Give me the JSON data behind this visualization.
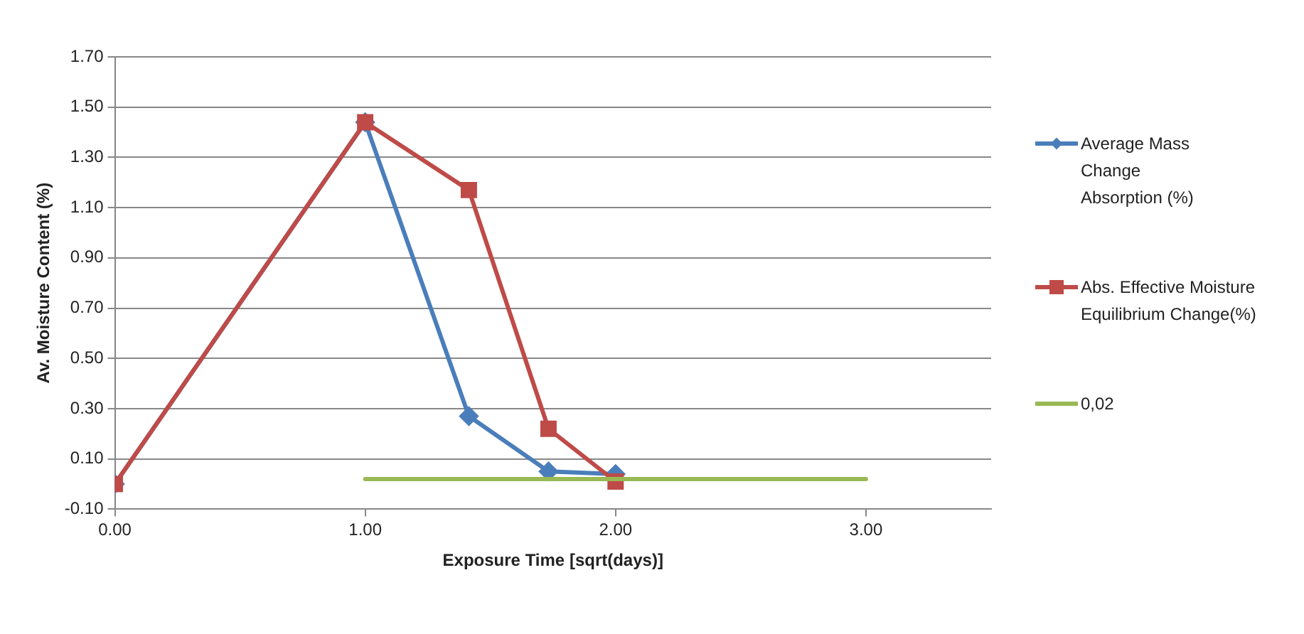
{
  "chart_data": {
    "type": "line",
    "xlabel": "Exposure Time [sqrt(days)]",
    "ylabel": "Av. Moisture Content (%)",
    "xlim": [
      0,
      3.5
    ],
    "xticks": [
      {
        "value": 0,
        "label": "0.00"
      },
      {
        "value": 1,
        "label": "1.00"
      },
      {
        "value": 2,
        "label": "2.00"
      },
      {
        "value": 3,
        "label": "3.00"
      }
    ],
    "ylim": [
      -0.1,
      1.7
    ],
    "yticks": [
      {
        "value": -0.1,
        "label": "-0.10"
      },
      {
        "value": 0.1,
        "label": "0.10"
      },
      {
        "value": 0.3,
        "label": "0.30"
      },
      {
        "value": 0.5,
        "label": "0.50"
      },
      {
        "value": 0.7,
        "label": "0.70"
      },
      {
        "value": 0.9,
        "label": "0.90"
      },
      {
        "value": 1.1,
        "label": "1.10"
      },
      {
        "value": 1.3,
        "label": "1.30"
      },
      {
        "value": 1.5,
        "label": "1.50"
      },
      {
        "value": 1.7,
        "label": "1.70"
      }
    ],
    "grid": "y",
    "legend": "right",
    "series": [
      {
        "name": "Average Mass Change Absorption (%)",
        "color": "#4a7ebb",
        "marker": "diamond",
        "x": [
          0,
          1,
          1.414,
          1.732,
          2
        ],
        "values": [
          0,
          1.44,
          0.27,
          0.05,
          0.04
        ]
      },
      {
        "name": "Abs. Effective Moisture Equilibrium Change(%)",
        "color": "#be4b48",
        "marker": "square",
        "x": [
          0,
          1,
          1.414,
          1.732,
          2
        ],
        "values": [
          0,
          1.44,
          1.17,
          0.22,
          0.01
        ]
      },
      {
        "name": "0,02",
        "color": "#98b954",
        "marker": "none",
        "x": [
          1,
          3
        ],
        "values": [
          0.02,
          0.02
        ]
      }
    ]
  }
}
